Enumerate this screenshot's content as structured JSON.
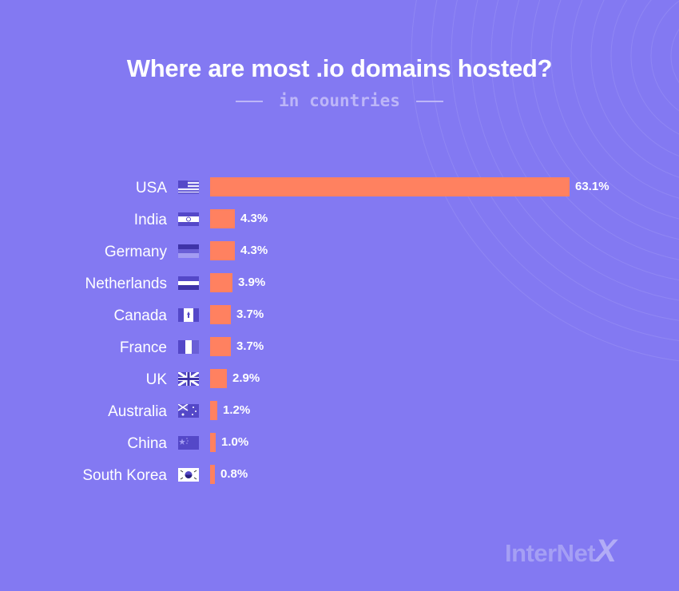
{
  "header": {
    "title": "Where are most .io domains hosted?",
    "subtitle": "in countries"
  },
  "brand": {
    "logo_main": "InterNet",
    "logo_x": "X"
  },
  "colors": {
    "background": "#8379f2",
    "bar": "#ff8160",
    "text": "#ffffff"
  },
  "chart_data": {
    "type": "bar",
    "orientation": "horizontal",
    "title": "Where are most .io domains hosted?",
    "subtitle": "in countries",
    "categories": [
      "USA",
      "India",
      "Germany",
      "Netherlands",
      "Canada",
      "France",
      "UK",
      "Australia",
      "China",
      "South Korea"
    ],
    "values": [
      63.1,
      4.3,
      4.3,
      3.9,
      3.7,
      3.7,
      2.9,
      1.2,
      1.0,
      0.8
    ],
    "value_labels": [
      "63.1%",
      "4.3%",
      "4.3%",
      "3.9%",
      "3.7%",
      "3.7%",
      "2.9%",
      "1.2%",
      "1.0%",
      "0.8%"
    ],
    "flag_icons": [
      "usa-flag-icon",
      "india-flag-icon",
      "germany-flag-icon",
      "netherlands-flag-icon",
      "canada-flag-icon",
      "france-flag-icon",
      "uk-flag-icon",
      "australia-flag-icon",
      "china-flag-icon",
      "south-korea-flag-icon"
    ],
    "unit": "%",
    "grid": false,
    "legend": "none"
  }
}
